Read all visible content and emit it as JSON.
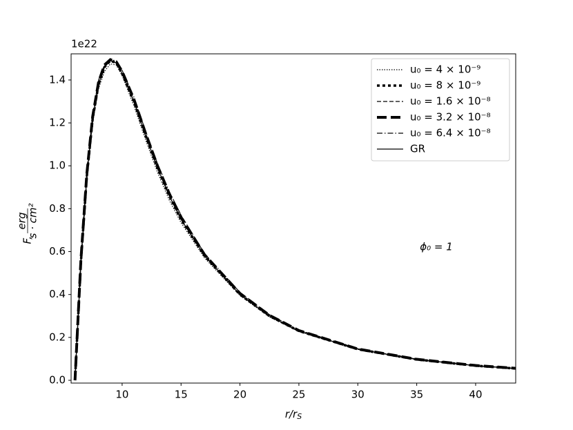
{
  "chart_data": {
    "type": "line",
    "y_offset_label": "1e22",
    "xlabel": {
      "main": "r/r",
      "sub": "S"
    },
    "ylabel": {
      "symbol": "F,",
      "numerator": "erg",
      "denominator": "s · cm²"
    },
    "annotation": "ϕ₀ = 1",
    "x": [
      6,
      6.5,
      7,
      7.5,
      8,
      8.5,
      9,
      9.5,
      10,
      11,
      12,
      13,
      14,
      15,
      17,
      20,
      22.5,
      25,
      30,
      35,
      40,
      43.4
    ],
    "series": [
      {
        "name": "u₀ = 4 × 10⁻⁹",
        "color": "#000000",
        "style": "dotted",
        "width": 1.2,
        "values": [
          0.0,
          0.53,
          0.93,
          1.2,
          1.36,
          1.44,
          1.475,
          1.47,
          1.42,
          1.28,
          1.12,
          0.97,
          0.84,
          0.735,
          0.57,
          0.395,
          0.295,
          0.228,
          0.144,
          0.097,
          0.068,
          0.055
        ]
      },
      {
        "name": "u₀ = 8 × 10⁻⁹",
        "color": "#000000",
        "style": "dotted",
        "width": 3.5,
        "values": [
          0.0,
          0.55,
          0.95,
          1.22,
          1.38,
          1.46,
          1.49,
          1.48,
          1.43,
          1.3,
          1.14,
          0.99,
          0.86,
          0.75,
          0.58,
          0.4,
          0.3,
          0.23,
          0.145,
          0.097,
          0.068,
          0.055
        ]
      },
      {
        "name": "u₀ = 1.6 × 10⁻⁸",
        "color": "#000000",
        "style": "dashed",
        "width": 1.2,
        "values": [
          0.0,
          0.55,
          0.95,
          1.22,
          1.38,
          1.46,
          1.49,
          1.48,
          1.43,
          1.3,
          1.14,
          0.99,
          0.86,
          0.75,
          0.58,
          0.4,
          0.3,
          0.23,
          0.145,
          0.097,
          0.068,
          0.055
        ]
      },
      {
        "name": "u₀ = 3.2 × 10⁻⁸",
        "color": "#000000",
        "style": "dashed",
        "width": 4,
        "values": [
          0.0,
          0.56,
          0.96,
          1.23,
          1.39,
          1.47,
          1.495,
          1.485,
          1.44,
          1.31,
          1.15,
          1.0,
          0.87,
          0.76,
          0.585,
          0.405,
          0.303,
          0.232,
          0.146,
          0.098,
          0.069,
          0.056
        ]
      },
      {
        "name": "u₀ = 6.4 × 10⁻⁸",
        "color": "#000000",
        "style": "dashdot",
        "width": 1.2,
        "values": [
          0.0,
          0.57,
          0.97,
          1.24,
          1.4,
          1.47,
          1.495,
          1.49,
          1.445,
          1.32,
          1.16,
          1.01,
          0.88,
          0.77,
          0.59,
          0.41,
          0.306,
          0.234,
          0.147,
          0.099,
          0.069,
          0.056
        ]
      },
      {
        "name": "GR",
        "color": "#000000",
        "style": "solid",
        "width": 1.2,
        "values": [
          0.0,
          0.55,
          0.95,
          1.22,
          1.38,
          1.46,
          1.49,
          1.48,
          1.43,
          1.3,
          1.14,
          0.99,
          0.86,
          0.75,
          0.58,
          0.4,
          0.3,
          0.23,
          0.145,
          0.097,
          0.068,
          0.055
        ]
      }
    ],
    "xlim": [
      5.67,
      43.4
    ],
    "ylim": [
      -0.0129,
      1.522
    ],
    "xticks": [
      10,
      15,
      20,
      25,
      30,
      35,
      40
    ],
    "yticks": [
      {
        "value": 0,
        "label": "0.0"
      },
      {
        "value": 0.2,
        "label": "0.2"
      },
      {
        "value": 0.4,
        "label": "0.4"
      },
      {
        "value": 0.6,
        "label": "0.6"
      },
      {
        "value": 0.8,
        "label": "0.8"
      },
      {
        "value": 1.0,
        "label": "1.0"
      },
      {
        "value": 1.2,
        "label": "1.2"
      },
      {
        "value": 1.4,
        "label": "1.4"
      }
    ],
    "grid": false,
    "legend": "upper right"
  }
}
